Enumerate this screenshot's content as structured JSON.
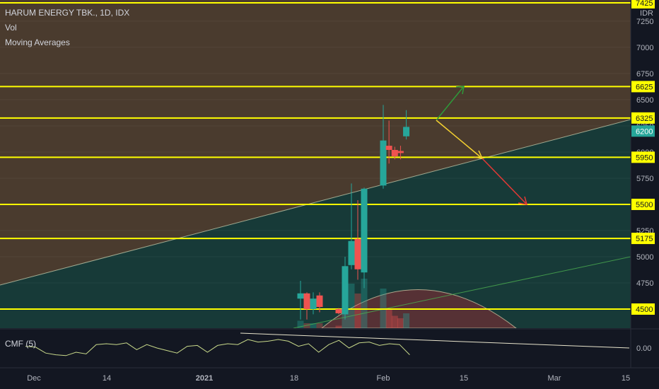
{
  "header": {
    "symbol_line": "HARUM ENERGY TBK., 1D, IDX",
    "vol_label": "Vol",
    "ma_label": "Moving Averages"
  },
  "price_axis": {
    "currency": "IDR",
    "ticks": [
      7250,
      7000,
      6750,
      6500,
      6250,
      6000,
      5750,
      5250,
      5000,
      4750
    ],
    "highlight_labels": [
      "7425",
      "6625",
      "6325",
      "6200",
      "5950",
      "5500",
      "5175",
      "4500"
    ]
  },
  "cmf": {
    "label": "CMF (5)",
    "axis_label": "0.00"
  },
  "time_axis": {
    "labels": [
      "Dec",
      "14",
      "2021",
      "18",
      "Feb",
      "15",
      "Mar",
      "15"
    ]
  },
  "colors": {
    "up": "#26a69a",
    "down": "#ef5350",
    "level_line": "#ffff00",
    "zone_above": "#4a3b2e",
    "zone_below": "#173a38",
    "arrow_up": "#2e9b3a",
    "arrow_mid": "#f5d130",
    "arrow_down": "#e53935"
  },
  "chart_data": {
    "type": "candlestick",
    "title": "HARUM ENERGY TBK., 1D, IDX",
    "ylim": [
      4500,
      7425
    ],
    "horizontal_levels": [
      7425,
      6625,
      6325,
      5950,
      5500,
      5175,
      4500
    ],
    "last_price": 6200,
    "candles": [
      {
        "date": "2021-01-19",
        "open": 4600,
        "high": 4770,
        "low": 4400,
        "close": 4650
      },
      {
        "date": "2021-01-20",
        "open": 4650,
        "high": 4660,
        "low": 4400,
        "close": 4500
      },
      {
        "date": "2021-01-21",
        "open": 4500,
        "high": 4660,
        "low": 4450,
        "close": 4600
      },
      {
        "date": "2021-01-22",
        "open": 4630,
        "high": 4660,
        "low": 4470,
        "close": 4520
      },
      {
        "date": "2021-01-25",
        "open": 4500,
        "high": 4510,
        "low": 4450,
        "close": 4460
      },
      {
        "date": "2021-01-26",
        "open": 4450,
        "high": 5000,
        "low": 4400,
        "close": 4910
      },
      {
        "date": "2021-01-27",
        "open": 4920,
        "high": 5700,
        "low": 4880,
        "close": 5150
      },
      {
        "date": "2021-01-28",
        "open": 5170,
        "high": 5540,
        "low": 4780,
        "close": 4880
      },
      {
        "date": "2021-01-29",
        "open": 4850,
        "high": 5660,
        "low": 4700,
        "close": 5650
      },
      {
        "date": "2021-02-01",
        "open": 5680,
        "high": 6450,
        "low": 5650,
        "close": 6110
      },
      {
        "date": "2021-02-02",
        "open": 6060,
        "high": 6300,
        "low": 5890,
        "close": 6020
      },
      {
        "date": "2021-02-03",
        "open": 6020,
        "high": 6050,
        "low": 5930,
        "close": 5960
      },
      {
        "date": "2021-02-04",
        "open": 6010,
        "high": 6060,
        "low": 5930,
        "close": 5990
      },
      {
        "date": "2021-02-05",
        "open": 6150,
        "high": 6400,
        "low": 6120,
        "close": 6240
      }
    ],
    "volume": [
      {
        "date": "2021-01-19",
        "value": 3
      },
      {
        "date": "2021-01-20",
        "value": 2
      },
      {
        "date": "2021-01-21",
        "value": 2
      },
      {
        "date": "2021-01-22",
        "value": 2
      },
      {
        "date": "2021-01-25",
        "value": 1
      },
      {
        "date": "2021-01-26",
        "value": 10
      },
      {
        "date": "2021-01-27",
        "value": 18
      },
      {
        "date": "2021-01-28",
        "value": 14
      },
      {
        "date": "2021-01-29",
        "value": 20
      },
      {
        "date": "2021-02-01",
        "value": 16
      },
      {
        "date": "2021-02-02",
        "value": 8
      },
      {
        "date": "2021-02-03",
        "value": 5
      },
      {
        "date": "2021-02-04",
        "value": 4
      },
      {
        "date": "2021-02-05",
        "value": 6
      }
    ],
    "cmf_series": [
      0.1,
      0.08,
      0.02,
      0.05,
      -0.05,
      0.04,
      0.09,
      0.0,
      0.06,
      0.07,
      0.03,
      0.05,
      0.04,
      -0.08
    ]
  }
}
